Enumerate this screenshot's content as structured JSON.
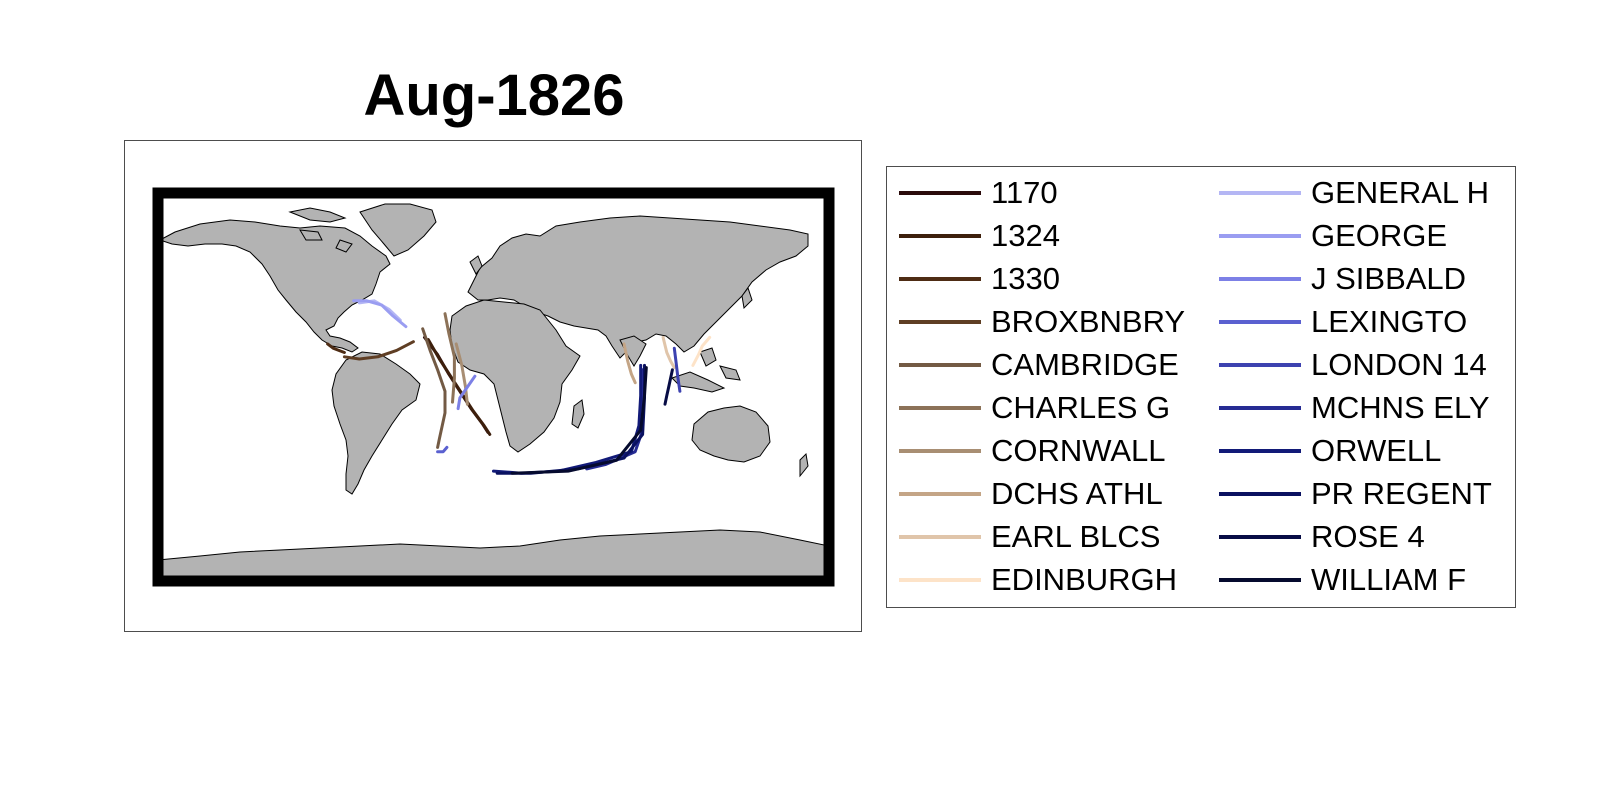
{
  "title": "Aug-1826",
  "map": {
    "projection": "equirectangular",
    "land_color": "#b3b3b3",
    "coast_color": "#000000",
    "frame_color": "#000000",
    "ocean_color": "#ffffff"
  },
  "legend": {
    "columns": 2,
    "items": [
      {
        "label": "1170",
        "color": "#2a0a0a"
      },
      {
        "label": "1324",
        "color": "#3d1f0c"
      },
      {
        "label": "1330",
        "color": "#4e2c14"
      },
      {
        "label": "BROXBNBRY",
        "color": "#5f3e24"
      },
      {
        "label": "CAMBRIDGE",
        "color": "#735a44"
      },
      {
        "label": "CHARLES G",
        "color": "#8c7258"
      },
      {
        "label": "CORNWALL",
        "color": "#a88e73"
      },
      {
        "label": "DCHS ATHL",
        "color": "#c4a586"
      },
      {
        "label": "EARL BLCS",
        "color": "#e0c5aa"
      },
      {
        "label": "EDINBURGH",
        "color": "#fde3c8"
      },
      {
        "label": "GENERAL H",
        "color": "#b4b6f4"
      },
      {
        "label": "GEORGE",
        "color": "#9a9df1"
      },
      {
        "label": "J SIBBALD",
        "color": "#7c80e6"
      },
      {
        "label": "LEXINGTO",
        "color": "#5a60d0"
      },
      {
        "label": "LONDON 14",
        "color": "#3d42b0"
      },
      {
        "label": "MCHNS ELY",
        "color": "#262b93"
      },
      {
        "label": "ORWELL",
        "color": "#121a78"
      },
      {
        "label": "PR REGENT",
        "color": "#0a1160"
      },
      {
        "label": "ROSE 4",
        "color": "#070c45"
      },
      {
        "label": "WILLIAM F",
        "color": "#050a2e"
      }
    ]
  },
  "chart_data": {
    "type": "map-tracks",
    "title": "Aug-1826",
    "coordinate_system": "longitude/latitude (degrees)",
    "series": [
      {
        "name": "1170",
        "lonlat": [
          [
            -37,
            23
          ],
          [
            -30,
            15
          ],
          [
            -24,
            6
          ],
          [
            -18,
            -2
          ],
          [
            -12,
            -10
          ],
          [
            -6,
            -17
          ],
          [
            -3,
            -21
          ]
        ]
      },
      {
        "name": "1324",
        "lonlat": [
          [
            -35,
            22
          ],
          [
            -29,
            13
          ],
          [
            -23,
            5
          ],
          [
            -17,
            -3
          ],
          [
            -11,
            -11
          ],
          [
            -5,
            -18
          ],
          [
            -2,
            -22
          ]
        ]
      },
      {
        "name": "1330",
        "lonlat": [
          [
            -89,
            20
          ],
          [
            -86,
            18
          ],
          [
            -83,
            17
          ],
          [
            -80,
            16
          ]
        ]
      },
      {
        "name": "BROXBNBRY",
        "lonlat": [
          [
            -80,
            14
          ],
          [
            -72,
            13
          ],
          [
            -62,
            14
          ],
          [
            -52,
            17
          ],
          [
            -43,
            21
          ]
        ]
      },
      {
        "name": "CAMBRIDGE",
        "lonlat": [
          [
            -38,
            27
          ],
          [
            -34,
            17
          ],
          [
            -30,
            8
          ],
          [
            -26,
            -2
          ],
          [
            -26,
            -12
          ],
          [
            -29,
            -24
          ],
          [
            -30,
            -28
          ]
        ]
      },
      {
        "name": "CHARLES G",
        "lonlat": [
          [
            -26,
            34
          ],
          [
            -24,
            25
          ],
          [
            -21,
            14
          ],
          [
            -21,
            4
          ],
          [
            -22,
            -7
          ]
        ]
      },
      {
        "name": "CORNWALL",
        "lonlat": [
          [
            -20,
            20
          ],
          [
            -17,
            10
          ],
          [
            -15,
            0
          ],
          [
            -14,
            -8
          ]
        ]
      },
      {
        "name": "DCHS ATHL",
        "lonlat": [
          [
            70,
            20
          ],
          [
            72,
            12
          ],
          [
            74,
            6
          ],
          [
            76,
            2
          ]
        ]
      },
      {
        "name": "EARL BLCS",
        "lonlat": [
          [
            91,
            23
          ],
          [
            93,
            16
          ],
          [
            95,
            12
          ],
          [
            97,
            9
          ]
        ]
      },
      {
        "name": "EDINBURGH",
        "lonlat": [
          [
            116,
            23
          ],
          [
            112,
            19
          ],
          [
            110,
            15
          ],
          [
            107,
            10
          ]
        ]
      },
      {
        "name": "GENERAL H",
        "lonlat": [
          [
            -72,
            39
          ],
          [
            -64,
            40
          ],
          [
            -56,
            36
          ],
          [
            -50,
            31
          ]
        ]
      },
      {
        "name": "GEORGE",
        "lonlat": [
          [
            -75,
            40
          ],
          [
            -68,
            40
          ],
          [
            -60,
            38
          ],
          [
            -54,
            33
          ],
          [
            -47,
            28
          ]
        ]
      },
      {
        "name": "J SIBBALD",
        "lonlat": [
          [
            -10,
            5
          ],
          [
            -14,
            0
          ],
          [
            -18,
            -5
          ],
          [
            -19,
            -10
          ]
        ]
      },
      {
        "name": "LEXINGTO",
        "lonlat": [
          [
            -25,
            -28
          ],
          [
            -27,
            -30
          ],
          [
            -30,
            -30
          ]
        ]
      },
      {
        "name": "LONDON 14",
        "lonlat": [
          [
            97,
            18
          ],
          [
            98,
            11
          ],
          [
            99,
            4
          ],
          [
            100,
            -2
          ]
        ]
      },
      {
        "name": "MCHNS ELY",
        "lonlat": [
          [
            80,
            8
          ],
          [
            80,
            -6
          ],
          [
            80,
            -20
          ],
          [
            76,
            -30
          ],
          [
            60,
            -36
          ],
          [
            50,
            -38
          ]
        ]
      },
      {
        "name": "ORWELL",
        "lonlat": [
          [
            79,
            10
          ],
          [
            79,
            -4
          ],
          [
            78,
            -18
          ],
          [
            74,
            -30
          ],
          [
            55,
            -35
          ],
          [
            35,
            -39
          ],
          [
            15,
            -40
          ],
          [
            0,
            -39
          ]
        ]
      },
      {
        "name": "PR REGENT",
        "lonlat": [
          [
            81,
            10
          ],
          [
            81,
            -5
          ],
          [
            80,
            -22
          ],
          [
            70,
            -33
          ],
          [
            45,
            -38
          ],
          [
            20,
            -40
          ],
          [
            2,
            -40
          ]
        ]
      },
      {
        "name": "ROSE 4",
        "lonlat": [
          [
            96,
            8
          ],
          [
            94,
            0
          ],
          [
            93,
            -4
          ],
          [
            92,
            -8
          ]
        ]
      },
      {
        "name": "WILLIAM F",
        "lonlat": [
          [
            82,
            9
          ],
          [
            81,
            -4
          ],
          [
            79,
            -20
          ],
          [
            66,
            -34
          ],
          [
            40,
            -39
          ],
          [
            10,
            -40
          ]
        ]
      }
    ]
  }
}
